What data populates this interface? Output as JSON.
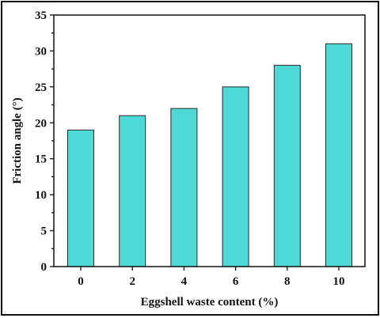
{
  "chart_data": {
    "type": "bar",
    "title": "",
    "xlabel": "Eggshell waste content (%)",
    "ylabel": "Friction angle (°)",
    "categories": [
      "0",
      "2",
      "4",
      "6",
      "8",
      "10"
    ],
    "values": [
      19,
      21,
      22,
      25,
      28,
      31
    ],
    "ylim": [
      0,
      35
    ],
    "yticks": [
      "0",
      "5",
      "10",
      "15",
      "20",
      "25",
      "30",
      "35"
    ],
    "grid": false,
    "legend": "none",
    "bar_color": "#4dd9d6",
    "bar_edge_color": "#2a2a2a"
  }
}
